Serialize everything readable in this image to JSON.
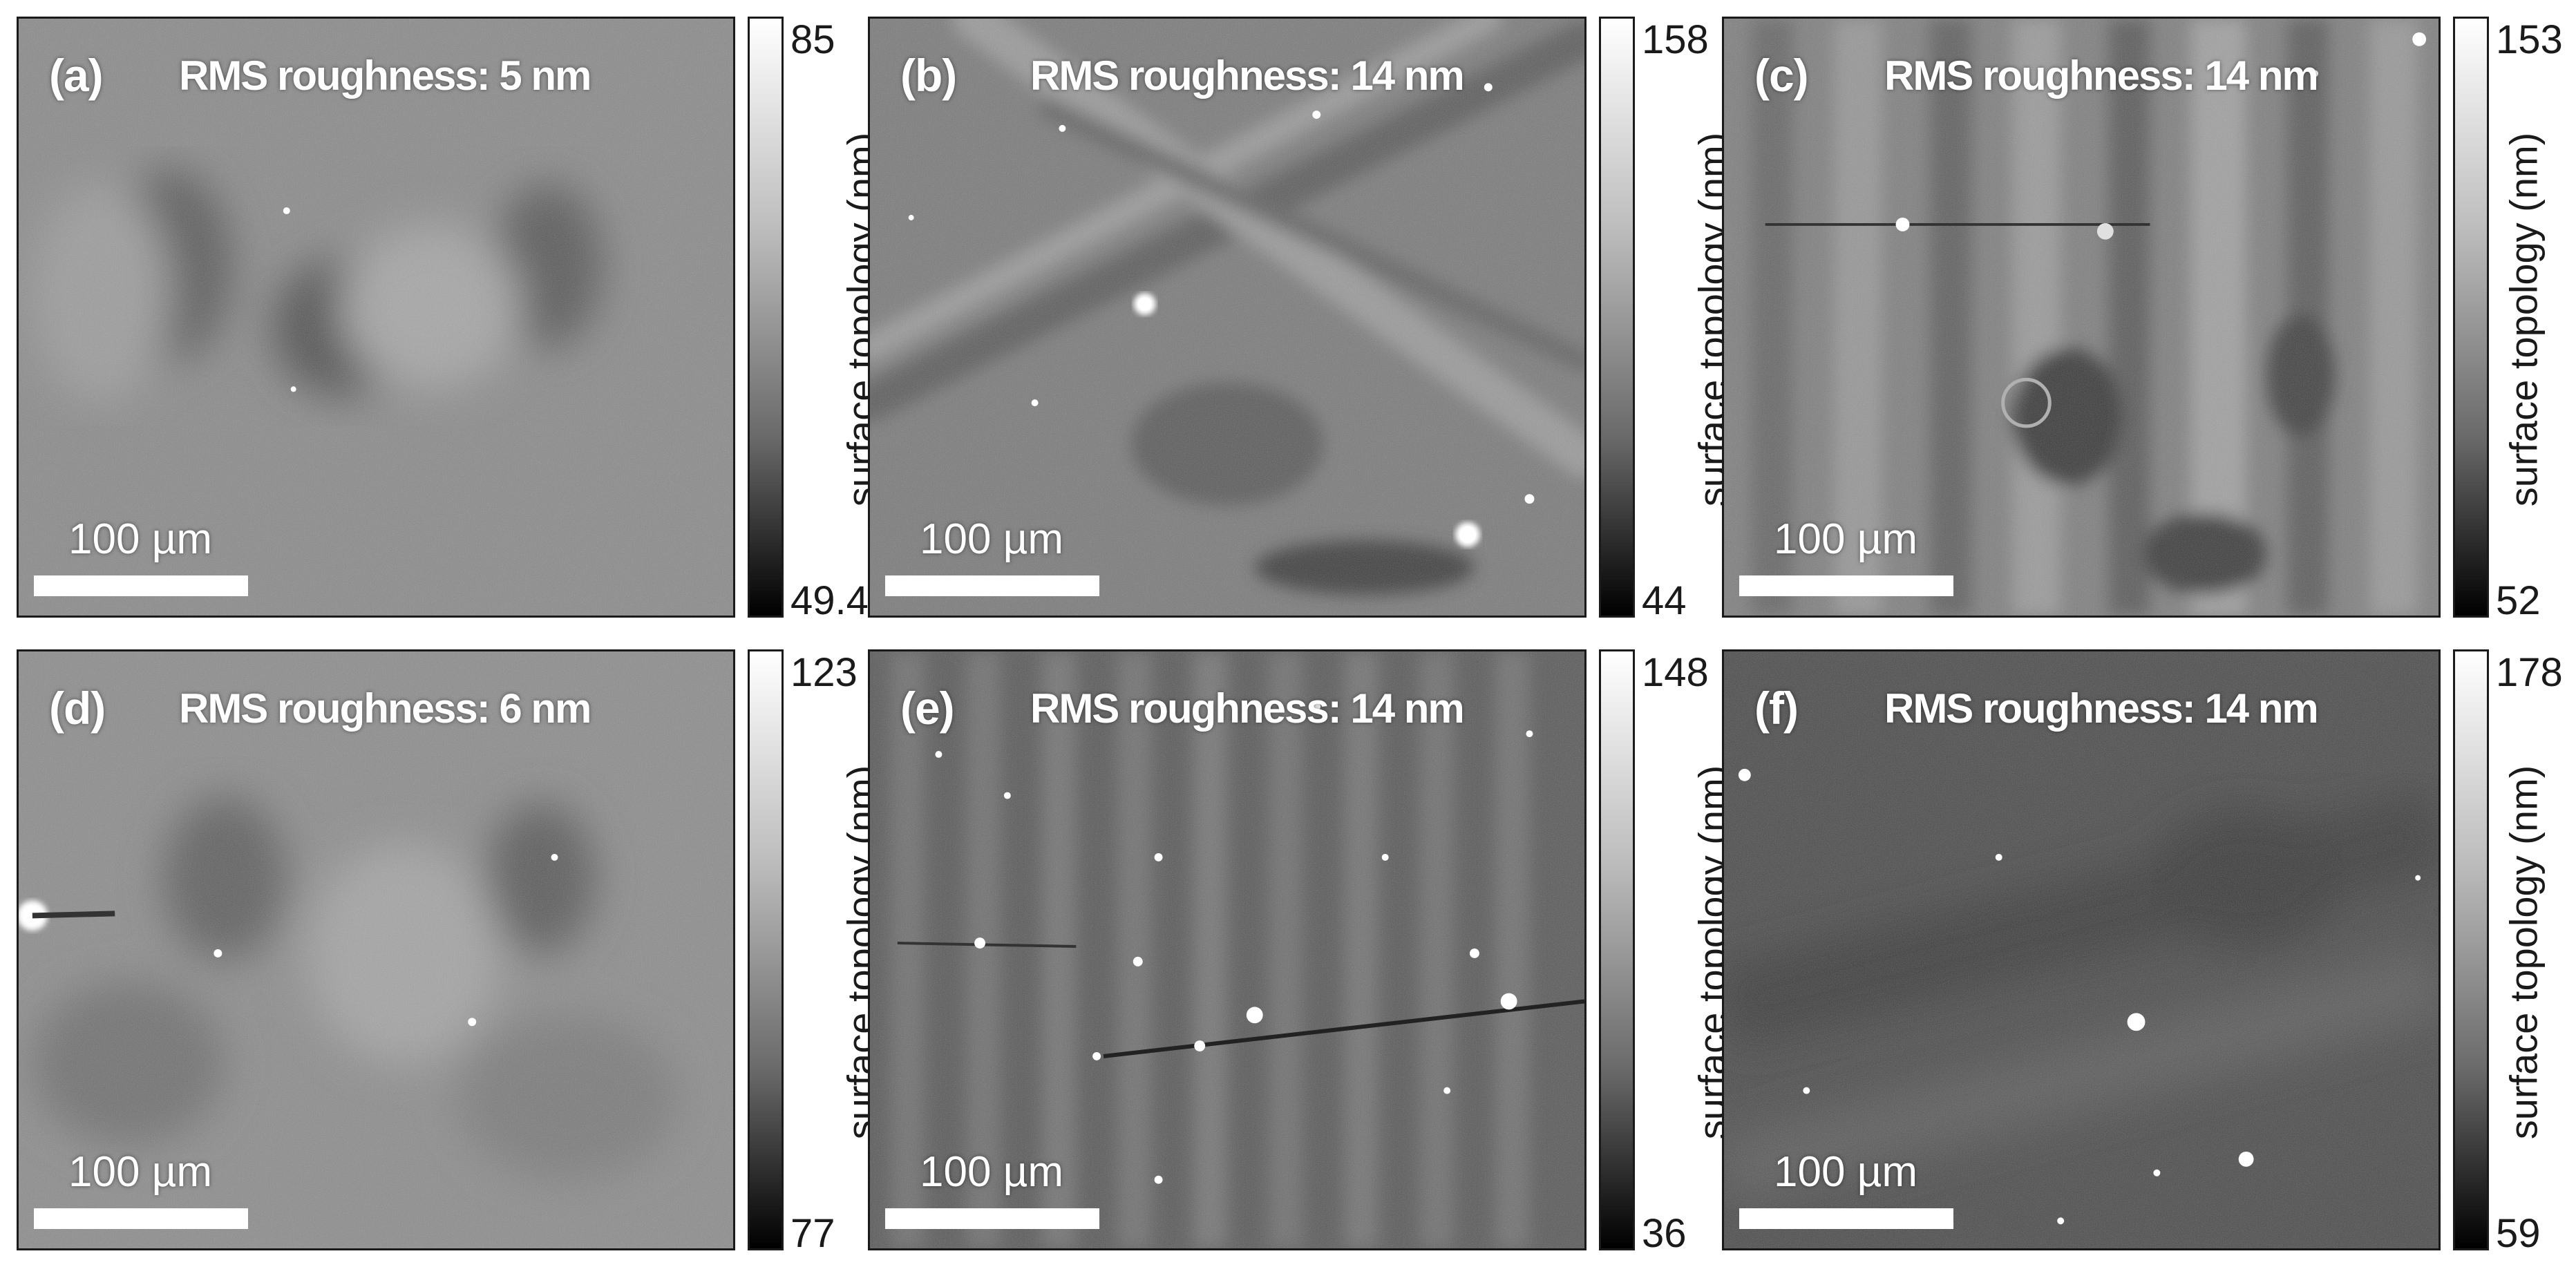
{
  "figure": {
    "scale_label": "100 µm",
    "colorbar_label": "surface topology (nm)",
    "panels": [
      {
        "label": "(a)",
        "rms": "RMS roughness: 5 nm",
        "cmax": "85",
        "cmin": "49.4"
      },
      {
        "label": "(b)",
        "rms": "RMS roughness: 14 nm",
        "cmax": "158",
        "cmin": "44"
      },
      {
        "label": "(c)",
        "rms": "RMS roughness: 14 nm",
        "cmax": "153",
        "cmin": "52"
      },
      {
        "label": "(d)",
        "rms": "RMS roughness: 6 nm",
        "cmax": "123",
        "cmin": "77"
      },
      {
        "label": "(e)",
        "rms": "RMS roughness: 14 nm",
        "cmax": "148",
        "cmin": "36"
      },
      {
        "label": "(f)",
        "rms": "RMS roughness: 14 nm",
        "cmax": "178",
        "cmin": "59"
      }
    ]
  }
}
